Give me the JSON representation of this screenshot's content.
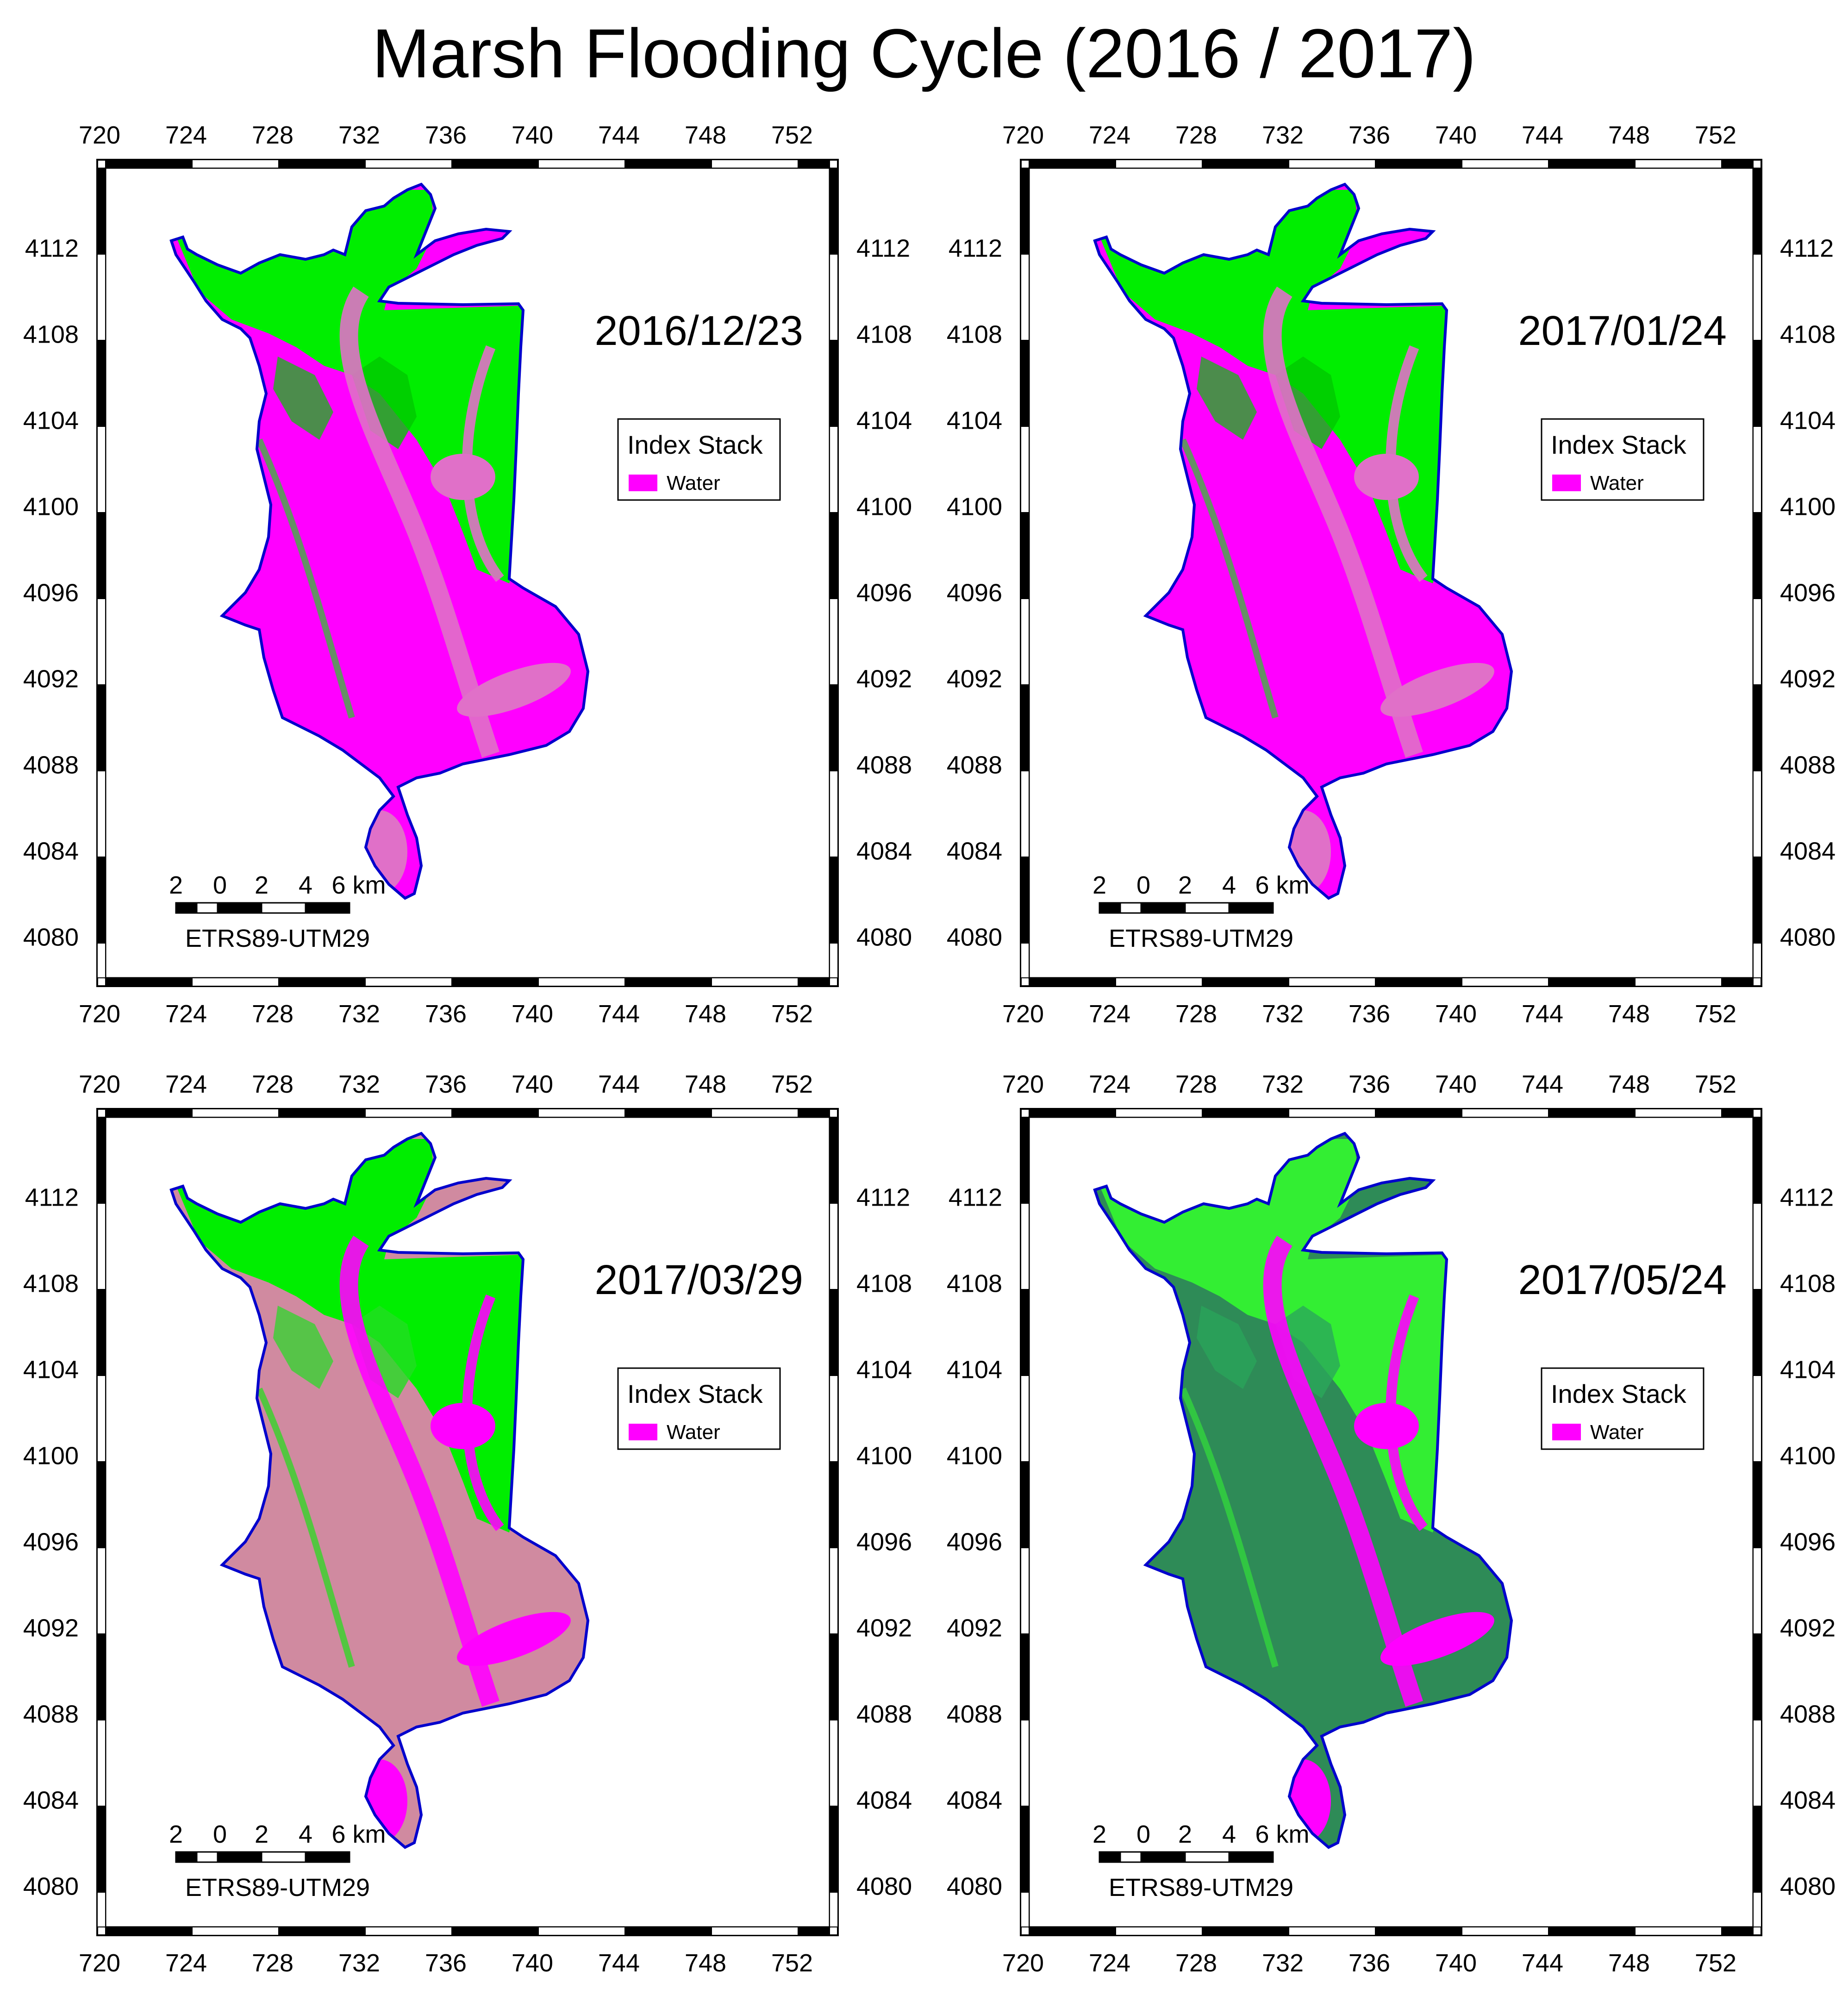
{
  "title": "Marsh Flooding Cycle (2016 / 2017)",
  "x_ticks": [
    "720",
    "724",
    "728",
    "732",
    "736",
    "740",
    "744",
    "748",
    "752"
  ],
  "y_ticks": [
    "4112",
    "4108",
    "4104",
    "4100",
    "4096",
    "4092",
    "4088",
    "4084",
    "4080"
  ],
  "legend": {
    "title": "Index Stack",
    "item": "Water",
    "swatch_color": "#ff00ff"
  },
  "scale_bar": {
    "labels": [
      "2",
      "0",
      "2",
      "4",
      "6 km"
    ],
    "crs": "ETRS89-UTM29"
  },
  "colors": {
    "water": "#ff00ff",
    "vegetation": "#00ee00",
    "dense_vegetation": "#2e8b57",
    "mixed": "#d08aa0",
    "outline": "#0000cc"
  },
  "panels": [
    {
      "date": "2016/12/23",
      "scheme": "wet"
    },
    {
      "date": "2017/01/24",
      "scheme": "wet"
    },
    {
      "date": "2017/03/29",
      "scheme": "transition"
    },
    {
      "date": "2017/05/24",
      "scheme": "dry"
    }
  ]
}
